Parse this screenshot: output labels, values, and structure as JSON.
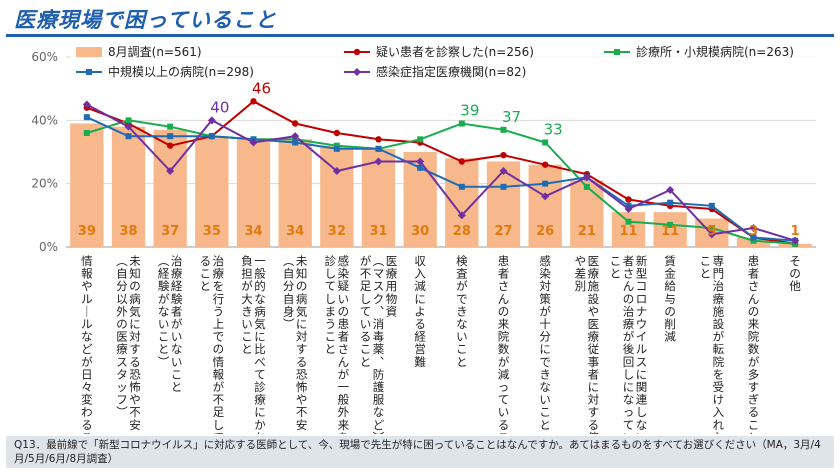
{
  "page": {
    "title": "医療現場で困っていること"
  },
  "footer": {
    "note": "Q13．最前線で「新型コロナウイルス」に対応する医師として、今、現場で先生が特に困っていることはなんですか。あてはまるものをすべてお選びください（MA，3月/4月/5月/6月/8月調査）"
  },
  "chart_data": {
    "type": "bar",
    "ylim": [
      0,
      60
    ],
    "yticks": [
      "0%",
      "20%",
      "40%",
      "60%"
    ],
    "categories": [
      "情報やルールなどが日々変わること",
      "未知の病気に対する恐怖や不安（自分以外の医療スタッフ）",
      "治療経験者がいないこと（経験がないこと）",
      "治療を行う上での情報が不足していること",
      "一般的な病気に比べて診療にかかる負担が大きいこと",
      "未知の病気に対する恐怖や不安（自分自身）",
      "感染疑いの患者さんが一般外来を受診してしまうこと",
      "医療用物資（マスク、消毒薬、防護服など）が不足していること",
      "収入減による経営難",
      "検査ができないこと",
      "患者さんの来院数が減っていること",
      "感染対策が十分にできないこと",
      "医療施設や医療従事者に対する偏見や差別",
      "新型コロナウイルスに関連しない患者さんの治療が後回しになっていること",
      "賃金給与の削減",
      "専門治療施設が転院を受け入れないこと",
      "患者さんの来院数が多すぎること",
      "その他"
    ],
    "bar_series": {
      "name": "8月調査(n=561)",
      "color": "#f7b98c",
      "values": [
        39,
        38,
        37,
        35,
        34,
        34,
        32,
        31,
        30,
        28,
        27,
        26,
        21,
        11,
        11,
        9,
        3,
        1
      ]
    },
    "series": [
      {
        "name": "疑い患者を診察した(n=256)",
        "color": "#c00000",
        "values": [
          44,
          39,
          32,
          35,
          46,
          39,
          36,
          34,
          33,
          27,
          29,
          26,
          23,
          15,
          13,
          12,
          3,
          1
        ],
        "labels": [
          null,
          null,
          null,
          null,
          "46",
          null,
          null,
          null,
          null,
          null,
          null,
          null,
          null,
          null,
          null,
          null,
          null,
          null
        ]
      },
      {
        "name": "診療所・小規模病院(n=263)",
        "color": "#1aad4e",
        "values": [
          36,
          40,
          38,
          35,
          34,
          34,
          32,
          31,
          34,
          39,
          37,
          33,
          19,
          8,
          7,
          6,
          2,
          1
        ],
        "labels": [
          null,
          null,
          null,
          null,
          null,
          null,
          null,
          null,
          null,
          "39",
          "37",
          "33",
          null,
          null,
          null,
          null,
          null,
          null
        ]
      },
      {
        "name": "中規模以上の病院(n=298)",
        "color": "#1f6cb5",
        "values": [
          41,
          35,
          35,
          35,
          34,
          33,
          31,
          31,
          25,
          19,
          19,
          20,
          22,
          13,
          14,
          13,
          3,
          2
        ],
        "labels": [
          null,
          null,
          null,
          null,
          null,
          null,
          null,
          null,
          null,
          null,
          null,
          null,
          null,
          null,
          null,
          null,
          null,
          null
        ]
      },
      {
        "name": "感染症指定医療機関(n=82)",
        "color": "#7030a0",
        "values": [
          45,
          38,
          24,
          40,
          33,
          35,
          24,
          27,
          27,
          10,
          24,
          16,
          22,
          12,
          18,
          4,
          6,
          2
        ],
        "labels": [
          null,
          null,
          null,
          "40",
          null,
          null,
          null,
          null,
          null,
          null,
          null,
          null,
          null,
          null,
          null,
          null,
          null,
          null
        ]
      }
    ],
    "legend_position": "top",
    "grid": true,
    "bar_label_color": "#e07a10"
  }
}
